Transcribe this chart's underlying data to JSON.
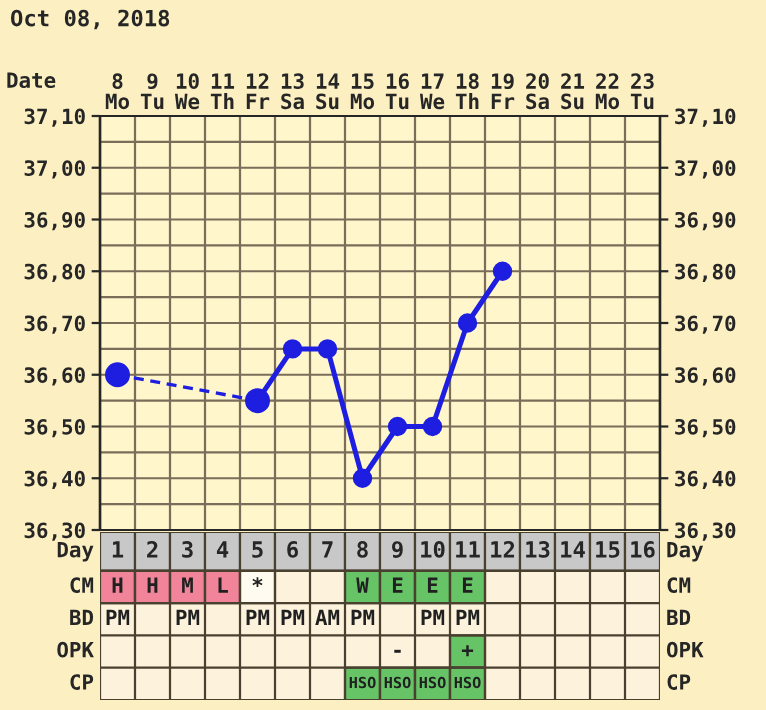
{
  "chart_data": [
    {
      "type": "line",
      "title": "Oct 08, 2018",
      "xlabel": "Date",
      "categories": [
        "8\nMo",
        "9\nTu",
        "10\nWe",
        "11\nTh",
        "12\nFr",
        "13\nSa",
        "14\nSu",
        "15\nMo",
        "16\nTu",
        "17\nWe",
        "18\nTh",
        "19\nFr",
        "20\nSa",
        "21\nSu",
        "22\nMo",
        "23\nTu"
      ],
      "series": [
        {
          "color": "#1e1ee0",
          "marker": "circle",
          "line_style": "solid",
          "values": [
            null,
            null,
            null,
            null,
            36.55,
            36.65,
            36.65,
            36.4,
            36.5,
            36.5,
            36.7,
            36.8,
            null,
            null,
            null,
            null
          ]
        },
        {
          "color": "#1e1ee0",
          "marker": "circle",
          "line_style": "dashed",
          "values": [
            36.6,
            null,
            null,
            null,
            36.55,
            null,
            null,
            null,
            null,
            null,
            null,
            null,
            null,
            null,
            null,
            null
          ]
        }
      ],
      "ylim": [
        36.3,
        37.1
      ],
      "yticks": [
        {
          "value": 36.3,
          "label": "36,30"
        },
        {
          "value": 36.4,
          "label": "36,40"
        },
        {
          "value": 36.5,
          "label": "36,50"
        },
        {
          "value": 36.6,
          "label": "36,60"
        },
        {
          "value": 36.7,
          "label": "36,70"
        },
        {
          "value": 36.8,
          "label": "36,80"
        },
        {
          "value": 36.9,
          "label": "36,90"
        },
        {
          "value": 37.0,
          "label": "37,00"
        },
        {
          "value": 37.1,
          "label": "37,10"
        }
      ],
      "y2lim": [
        36.3,
        37.1
      ],
      "y2ticks": [
        {
          "value": 36.3,
          "label": "36,30"
        },
        {
          "value": 36.4,
          "label": "36,40"
        },
        {
          "value": 36.5,
          "label": "36,50"
        },
        {
          "value": 36.6,
          "label": "36,60"
        },
        {
          "value": 36.7,
          "label": "36,70"
        },
        {
          "value": 36.8,
          "label": "36,80"
        },
        {
          "value": 36.9,
          "label": "36,90"
        },
        {
          "value": 37.0,
          "label": "37,00"
        },
        {
          "value": 37.1,
          "label": "37,10"
        }
      ],
      "grid": true
    },
    {
      "type": "heatmap",
      "xlabel": "Day",
      "categories": [
        "1",
        "2",
        "3",
        "4",
        "5",
        "6",
        "7",
        "8",
        "9",
        "10",
        "11",
        "12",
        "13",
        "14",
        "15",
        "16"
      ],
      "y_categories": [
        "CM",
        "BD",
        "OPK",
        "CP"
      ],
      "y2_categories": [
        "CM",
        "BD",
        "OPK",
        "CP"
      ],
      "cells": [
        [
          null,
          null,
          null,
          null,
          null,
          null,
          null,
          null,
          null,
          null,
          null,
          null,
          null,
          null,
          null,
          null
        ],
        [
          null,
          null,
          null,
          null,
          null,
          null,
          null,
          null,
          null,
          null,
          null,
          null,
          null,
          null,
          null,
          null
        ],
        [
          null,
          null,
          null,
          null,
          null,
          null,
          null,
          null,
          null,
          null,
          null,
          null,
          null,
          null,
          null,
          null
        ],
        [
          null,
          null,
          null,
          null,
          null,
          null,
          null,
          null,
          null,
          null,
          null,
          null,
          null,
          null,
          null,
          null
        ]
      ],
      "cell_labels": [
        [
          "H",
          "H",
          "M",
          "L",
          "*",
          null,
          null,
          "W",
          "E",
          "E",
          "E",
          null,
          null,
          null,
          null,
          null
        ],
        [
          "PM",
          null,
          "PM",
          null,
          "PM",
          "PM",
          "AM",
          "PM",
          null,
          "PM",
          "PM",
          null,
          null,
          null,
          null,
          null
        ],
        [
          null,
          null,
          null,
          null,
          null,
          null,
          null,
          null,
          "-",
          null,
          "+",
          null,
          null,
          null,
          null,
          null
        ],
        [
          null,
          null,
          null,
          null,
          null,
          null,
          null,
          "HSO",
          "HSO",
          "HSO",
          "HSO",
          null,
          null,
          null,
          null,
          null
        ]
      ]
    }
  ]
}
